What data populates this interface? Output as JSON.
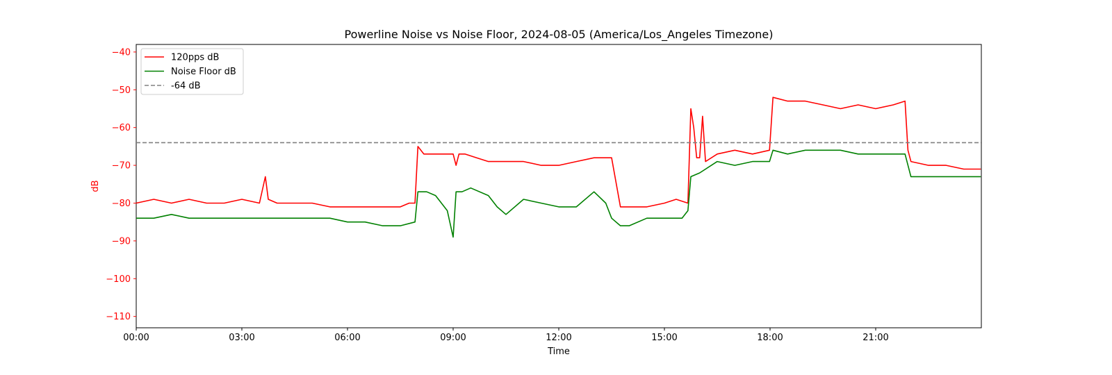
{
  "chart_data": {
    "type": "line",
    "title": "Powerline Noise vs Noise Floor, 2024-08-05 (America/Los_Angeles Timezone)",
    "xlabel": "Time",
    "ylabel": "dB",
    "xlim": [
      "00:00",
      "24:00"
    ],
    "ylim": [
      -113,
      -38
    ],
    "x_ticks": [
      "00:00",
      "03:00",
      "06:00",
      "09:00",
      "12:00",
      "15:00",
      "18:00",
      "21:00"
    ],
    "y_ticks": [
      -40,
      -50,
      -60,
      -70,
      -80,
      -90,
      -100,
      -110
    ],
    "legend_position": "top-left",
    "grid": false,
    "colors": {
      "series_120pps": "#ff0000",
      "series_noise_floor": "#008000",
      "reference_line": "#808080",
      "ylabel": "#ff0000"
    },
    "series": [
      {
        "name": "120pps dB",
        "x": [
          "00:00",
          "00:30",
          "01:00",
          "01:30",
          "02:00",
          "02:30",
          "03:00",
          "03:30",
          "03:40",
          "03:45",
          "04:00",
          "04:30",
          "05:00",
          "05:30",
          "06:00",
          "06:30",
          "07:00",
          "07:30",
          "07:45",
          "07:55",
          "08:00",
          "08:10",
          "08:30",
          "09:00",
          "09:05",
          "09:10",
          "09:20",
          "09:40",
          "10:00",
          "10:30",
          "11:00",
          "11:30",
          "12:00",
          "12:30",
          "13:00",
          "13:30",
          "13:45",
          "14:00",
          "14:30",
          "15:00",
          "15:20",
          "15:40",
          "15:45",
          "15:50",
          "15:55",
          "16:00",
          "16:05",
          "16:10",
          "16:30",
          "17:00",
          "17:30",
          "17:59",
          "18:05",
          "18:30",
          "19:00",
          "19:30",
          "20:00",
          "20:30",
          "21:00",
          "21:30",
          "21:50",
          "21:55",
          "22:00",
          "22:30",
          "23:00",
          "23:30",
          "23:59"
        ],
        "values": [
          -80,
          -79,
          -80,
          -79,
          -80,
          -80,
          -79,
          -80,
          -73,
          -79,
          -80,
          -80,
          -80,
          -81,
          -81,
          -81,
          -81,
          -81,
          -80,
          -80,
          -65,
          -67,
          -67,
          -67,
          -70,
          -67,
          -67,
          -68,
          -69,
          -69,
          -69,
          -70,
          -70,
          -69,
          -68,
          -68,
          -81,
          -81,
          -81,
          -80,
          -79,
          -80,
          -55,
          -60,
          -68,
          -68,
          -57,
          -69,
          -67,
          -66,
          -67,
          -66,
          -52,
          -53,
          -53,
          -54,
          -55,
          -54,
          -55,
          -54,
          -53,
          -66,
          -69,
          -70,
          -70,
          -71,
          -71
        ]
      },
      {
        "name": "Noise Floor dB",
        "x": [
          "00:00",
          "00:30",
          "01:00",
          "01:30",
          "02:00",
          "02:30",
          "03:00",
          "03:30",
          "04:00",
          "04:30",
          "05:00",
          "05:30",
          "06:00",
          "06:30",
          "07:00",
          "07:30",
          "07:55",
          "08:00",
          "08:15",
          "08:30",
          "08:50",
          "09:00",
          "09:05",
          "09:15",
          "09:30",
          "10:00",
          "10:15",
          "10:30",
          "11:00",
          "11:30",
          "12:00",
          "12:30",
          "13:00",
          "13:20",
          "13:30",
          "13:45",
          "14:00",
          "14:30",
          "15:00",
          "15:30",
          "15:40",
          "15:45",
          "16:00",
          "16:30",
          "17:00",
          "17:30",
          "17:59",
          "18:05",
          "18:30",
          "19:00",
          "19:30",
          "20:00",
          "20:30",
          "21:00",
          "21:30",
          "21:50",
          "22:00",
          "22:30",
          "23:00",
          "23:30",
          "23:59"
        ],
        "values": [
          -84,
          -84,
          -83,
          -84,
          -84,
          -84,
          -84,
          -84,
          -84,
          -84,
          -84,
          -84,
          -85,
          -85,
          -86,
          -86,
          -85,
          -77,
          -77,
          -78,
          -82,
          -89,
          -77,
          -77,
          -76,
          -78,
          -81,
          -83,
          -79,
          -80,
          -81,
          -81,
          -77,
          -80,
          -84,
          -86,
          -86,
          -84,
          -84,
          -84,
          -82,
          -73,
          -72,
          -69,
          -70,
          -69,
          -69,
          -66,
          -67,
          -66,
          -66,
          -66,
          -67,
          -67,
          -67,
          -67,
          -73,
          -73,
          -73,
          -73,
          -73
        ]
      },
      {
        "name": "-64 dB",
        "x": [
          "00:00",
          "23:59"
        ],
        "values": [
          -64,
          -64
        ],
        "style": "dashed"
      }
    ]
  }
}
